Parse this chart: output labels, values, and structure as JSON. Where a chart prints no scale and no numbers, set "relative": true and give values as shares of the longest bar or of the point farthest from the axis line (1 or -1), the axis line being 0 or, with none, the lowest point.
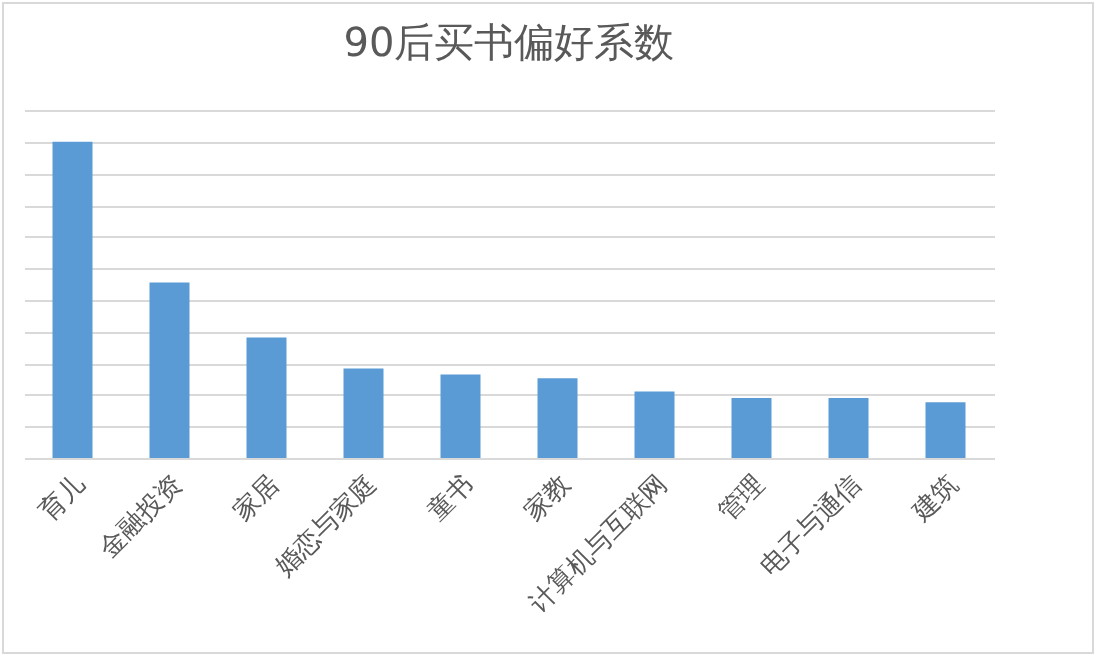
{
  "chart_data": {
    "type": "bar",
    "title": "90后买书偏好系数",
    "categories": [
      "育儿",
      "金融投资",
      "家居",
      "婚恋与家庭",
      "童书",
      "家教",
      "计算机与互联网",
      "管理",
      "电子与通信",
      "建筑"
    ],
    "values": [
      1,
      0.555,
      0.381,
      0.283,
      0.264,
      0.252,
      0.21,
      0.19,
      0.19,
      0.176
    ],
    "color": "#5b9bd5",
    "relative": true,
    "grid": "y"
  }
}
